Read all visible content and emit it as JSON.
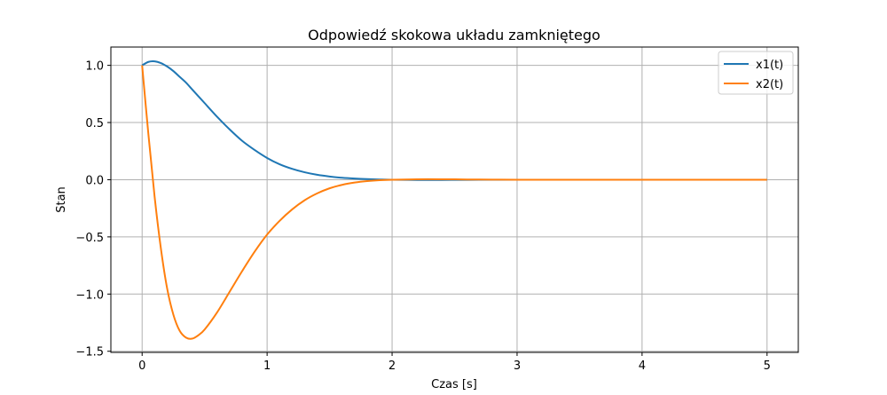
{
  "chart_data": {
    "type": "line",
    "title": "Odpowiedź skokowa układu zamkniętego",
    "xlabel": "Czas [s]",
    "ylabel": "Stan",
    "xlim": [
      -0.25,
      5.25
    ],
    "ylim": [
      -1.51,
      1.16
    ],
    "x_ticks": [
      0,
      1,
      2,
      3,
      4,
      5
    ],
    "x_tick_labels": [
      "0",
      "1",
      "2",
      "3",
      "4",
      "5"
    ],
    "y_ticks": [
      1.0,
      0.5,
      0.0,
      -0.5,
      -1.0,
      -1.5
    ],
    "y_tick_labels": [
      "1.0",
      "0.5",
      "0.0",
      "−0.5",
      "−1.0",
      "−1.5"
    ],
    "grid": true,
    "legend_position": "top-right",
    "x": [
      0,
      0.05,
      0.1,
      0.15,
      0.2,
      0.25,
      0.3,
      0.35,
      0.4,
      0.45,
      0.5,
      0.6,
      0.7,
      0.8,
      0.9,
      1.0,
      1.1,
      1.2,
      1.3,
      1.4,
      1.5,
      1.6,
      1.7,
      1.8,
      1.9,
      2.0,
      2.2,
      2.4,
      2.6,
      2.8,
      3.0,
      3.5,
      4.0,
      4.5,
      5.0
    ],
    "series": [
      {
        "name": "x1(t)",
        "color": "#1f77b4",
        "values": [
          1.0,
          1.03,
          1.035,
          1.02,
          0.99,
          0.95,
          0.9,
          0.85,
          0.79,
          0.73,
          0.67,
          0.55,
          0.44,
          0.34,
          0.26,
          0.19,
          0.135,
          0.095,
          0.065,
          0.043,
          0.028,
          0.017,
          0.01,
          0.005,
          0.002,
          0.0,
          -0.002,
          -0.002,
          -0.001,
          0.0,
          0.0,
          0.0,
          0.0,
          0.0,
          0.0
        ]
      },
      {
        "name": "x2(t)",
        "color": "#ff7f0e",
        "values": [
          1.0,
          0.4,
          -0.15,
          -0.6,
          -0.95,
          -1.18,
          -1.32,
          -1.38,
          -1.39,
          -1.36,
          -1.31,
          -1.16,
          -0.98,
          -0.8,
          -0.63,
          -0.48,
          -0.36,
          -0.26,
          -0.18,
          -0.12,
          -0.075,
          -0.045,
          -0.025,
          -0.012,
          -0.004,
          0.0,
          0.004,
          0.004,
          0.002,
          0.001,
          0.0,
          0.0,
          0.0,
          0.0,
          0.0
        ]
      }
    ]
  }
}
